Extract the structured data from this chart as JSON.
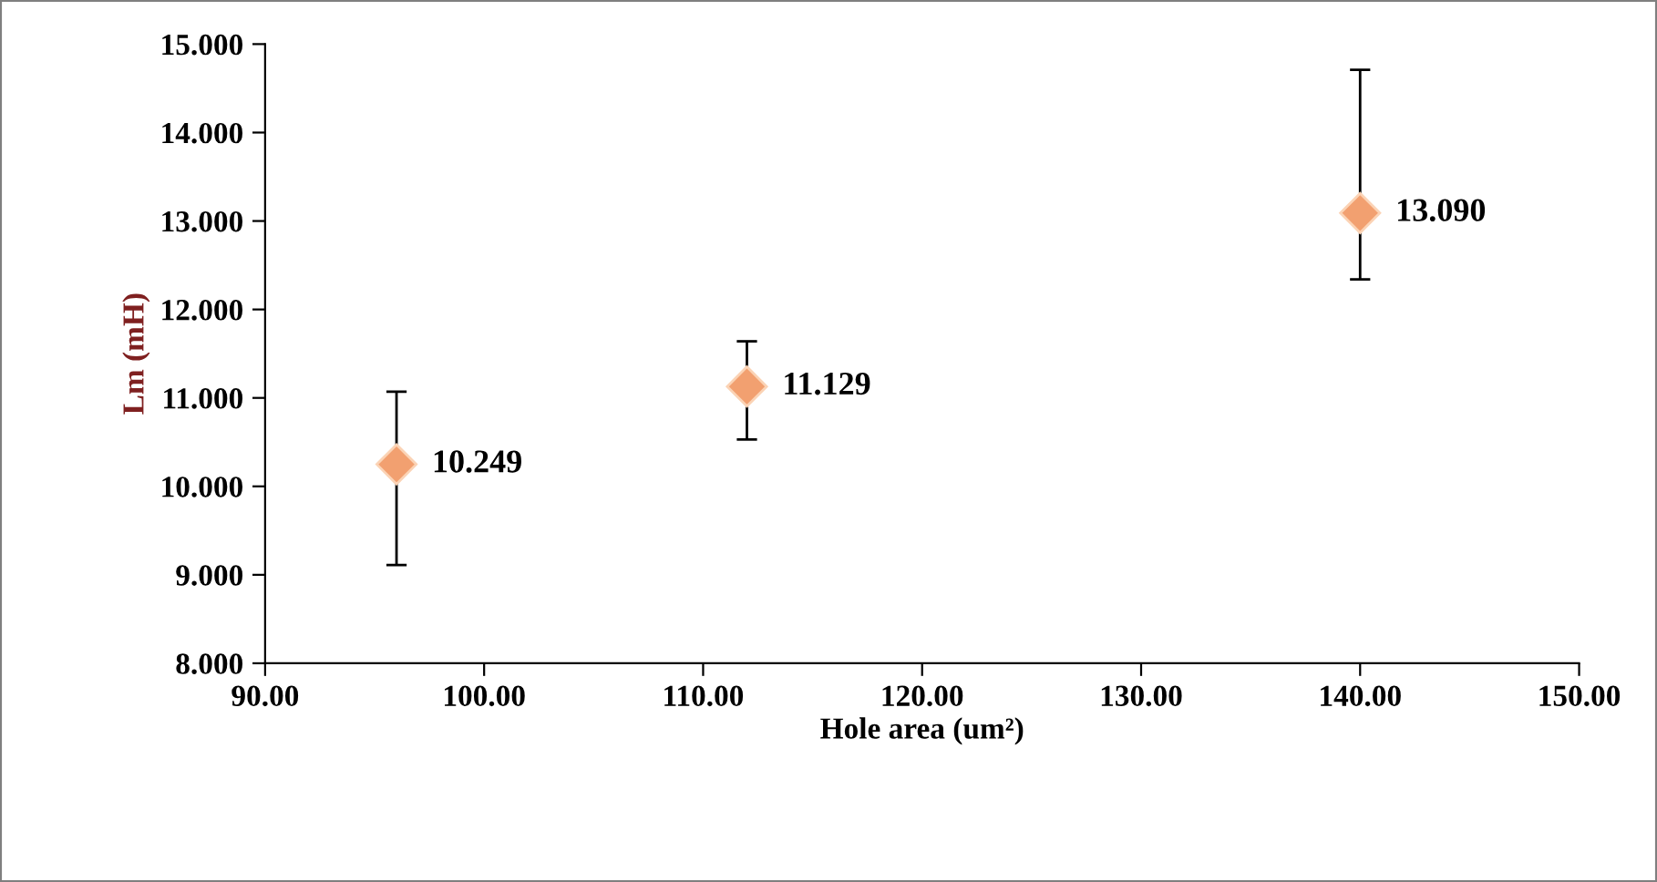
{
  "chart_data": {
    "type": "scatter",
    "xlabel": "Hole area (um²)",
    "ylabel": "Lm (mH)",
    "x": [
      96,
      112,
      140
    ],
    "series": [
      {
        "color": "#f2a070",
        "values": [
          10.249,
          11.129,
          13.09
        ],
        "errors": [
          [
            9.11,
            11.07
          ],
          [
            10.53,
            11.64
          ],
          [
            12.34,
            14.71
          ]
        ],
        "value_labels": [
          "10.249",
          "11.129",
          "13.090"
        ]
      }
    ],
    "marker": "diamond",
    "xlim": [
      90,
      150
    ],
    "xticks": [
      {
        "value": 90,
        "label": "90.00"
      },
      {
        "value": 100,
        "label": "100.00"
      },
      {
        "value": 110,
        "label": "110.00"
      },
      {
        "value": 120,
        "label": "120.00"
      },
      {
        "value": 130,
        "label": "130.00"
      },
      {
        "value": 140,
        "label": "140.00"
      },
      {
        "value": 150,
        "label": "150.00"
      }
    ],
    "ylim": [
      8,
      15
    ],
    "yticks": [
      {
        "value": 8,
        "label": "8.000"
      },
      {
        "value": 9,
        "label": "9.000"
      },
      {
        "value": 10,
        "label": "10.000"
      },
      {
        "value": 11,
        "label": "11.000"
      },
      {
        "value": 12,
        "label": "12.000"
      },
      {
        "value": 13,
        "label": "13.000"
      },
      {
        "value": 14,
        "label": "14.000"
      },
      {
        "value": 15,
        "label": "15.000"
      }
    ],
    "grid": false,
    "legend": false
  }
}
